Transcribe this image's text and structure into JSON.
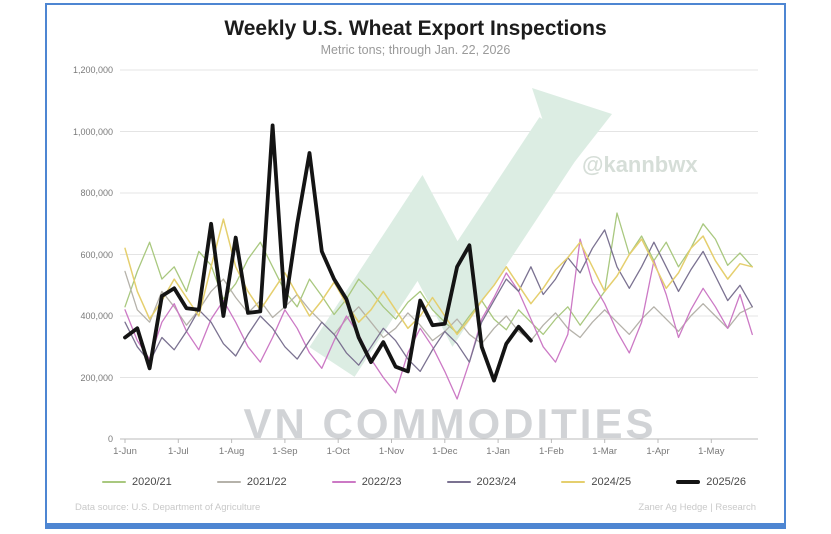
{
  "chart": {
    "title": "Weekly U.S. Wheat Export Inspections",
    "subtitle": "Metric tons; through Jan. 22, 2026"
  },
  "watermarks": {
    "center": "VN COMMODITIES",
    "handle": "@kannbwx"
  },
  "footer": {
    "left": "Data source: U.S. Department of Agriculture",
    "right": "Zaner Ag Hedge | Research"
  },
  "colors": {
    "frame_border": "#4e86d2",
    "grid": "#e4e4e4",
    "axis": "#bbbbbb",
    "axis_text": "#7a7a7a",
    "watermark_arrow": "#dcede3"
  },
  "chart_data": {
    "type": "line",
    "title": "Weekly U.S. Wheat Export Inspections",
    "subtitle": "Metric tons; through Jan. 22, 2026",
    "ylabel": "Metric tons",
    "ylim": [
      0,
      1200000
    ],
    "grid": "horizontal",
    "legend_position": "bottom",
    "y_ticks": [
      0,
      200000,
      400000,
      600000,
      800000,
      1000000,
      1200000
    ],
    "y_tick_labels": [
      "0",
      "200,000",
      "400,000",
      "600,000",
      "800,000",
      "1,000,000",
      "1,200,000"
    ],
    "x_tick_labels": [
      "1-Jun",
      "1-Jul",
      "1-Aug",
      "1-Sep",
      "1-Oct",
      "1-Nov",
      "1-Dec",
      "1-Jan",
      "1-Feb",
      "1-Mar",
      "1-Apr",
      "1-May"
    ],
    "x_unit": "weekly points, Jun through May",
    "series": [
      {
        "name": "2020/21",
        "color": "#a9c87f",
        "width": 1.3,
        "values": [
          430000,
          545000,
          640000,
          520000,
          560000,
          480000,
          610000,
          565000,
          455000,
          505000,
          585000,
          640000,
          560000,
          480000,
          430000,
          520000,
          465000,
          405000,
          455000,
          520000,
          480000,
          430000,
          390000,
          445000,
          480000,
          420000,
          380000,
          345000,
          400000,
          450000,
          390000,
          355000,
          420000,
          380000,
          340000,
          390000,
          430000,
          370000,
          425000,
          480000,
          735000,
          600000,
          660000,
          580000,
          640000,
          560000,
          620000,
          700000,
          650000,
          565000,
          605000,
          560000
        ]
      },
      {
        "name": "2021/22",
        "color": "#b5b2aa",
        "width": 1.3,
        "values": [
          545000,
          420000,
          380000,
          480000,
          430000,
          370000,
          420000,
          480000,
          520000,
          460000,
          410000,
          450000,
          395000,
          430000,
          470000,
          420000,
          380000,
          340000,
          390000,
          430000,
          380000,
          330000,
          360000,
          410000,
          370000,
          320000,
          350000,
          390000,
          340000,
          310000,
          360000,
          400000,
          350000,
          320000,
          370000,
          410000,
          360000,
          330000,
          380000,
          420000,
          380000,
          340000,
          390000,
          430000,
          390000,
          350000,
          400000,
          440000,
          400000,
          360000,
          410000,
          430000
        ]
      },
      {
        "name": "2022/23",
        "color": "#cc79c5",
        "width": 1.3,
        "values": [
          420000,
          320000,
          260000,
          380000,
          440000,
          350000,
          290000,
          390000,
          450000,
          380000,
          300000,
          250000,
          330000,
          420000,
          360000,
          280000,
          230000,
          320000,
          400000,
          340000,
          260000,
          200000,
          150000,
          280000,
          360000,
          300000,
          220000,
          130000,
          250000,
          390000,
          460000,
          540000,
          480000,
          390000,
          300000,
          250000,
          340000,
          650000,
          510000,
          440000,
          350000,
          280000,
          380000,
          580000,
          470000,
          330000,
          420000,
          490000,
          430000,
          360000,
          470000,
          340000
        ]
      },
      {
        "name": "2023/24",
        "color": "#7b7291",
        "width": 1.3,
        "values": [
          380000,
          300000,
          250000,
          330000,
          290000,
          350000,
          420000,
          380000,
          310000,
          270000,
          340000,
          400000,
          360000,
          300000,
          260000,
          320000,
          380000,
          340000,
          280000,
          240000,
          300000,
          360000,
          320000,
          260000,
          220000,
          290000,
          350000,
          310000,
          250000,
          380000,
          450000,
          520000,
          480000,
          560000,
          470000,
          520000,
          590000,
          540000,
          620000,
          680000,
          560000,
          490000,
          560000,
          640000,
          560000,
          480000,
          550000,
          610000,
          530000,
          450000,
          500000,
          430000
        ]
      },
      {
        "name": "2024/25",
        "color": "#e5cf6e",
        "width": 1.5,
        "values": [
          620000,
          480000,
          390000,
          450000,
          520000,
          460000,
          400000,
          560000,
          715000,
          560000,
          480000,
          420000,
          480000,
          540000,
          470000,
          400000,
          450000,
          510000,
          440000,
          380000,
          420000,
          480000,
          420000,
          360000,
          400000,
          460000,
          400000,
          340000,
          390000,
          450000,
          500000,
          560000,
          500000,
          440000,
          490000,
          550000,
          590000,
          640000,
          560000,
          480000,
          530000,
          600000,
          650000,
          570000,
          490000,
          540000,
          620000,
          660000,
          580000,
          520000,
          570000,
          560000
        ]
      },
      {
        "name": "2025/26",
        "color": "#141414",
        "width": 3.8,
        "values": [
          330000,
          360000,
          230000,
          465000,
          490000,
          425000,
          420000,
          700000,
          400000,
          655000,
          410000,
          415000,
          1020000,
          430000,
          700000,
          930000,
          610000,
          520000,
          455000,
          330000,
          250000,
          315000,
          235000,
          220000,
          450000,
          370000,
          375000,
          560000,
          630000,
          300000,
          190000,
          310000,
          365000,
          320000
        ]
      }
    ]
  }
}
